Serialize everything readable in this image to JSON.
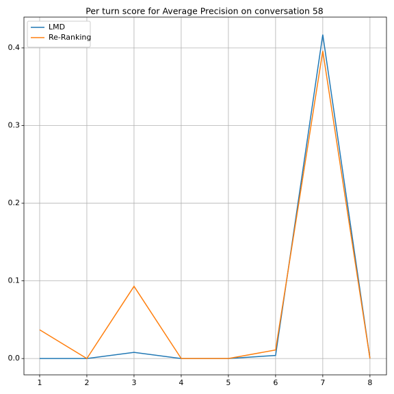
{
  "chart_data": {
    "type": "line",
    "title": "Per turn score for Average Precision on conversation 58",
    "x": [
      1,
      2,
      3,
      4,
      5,
      6,
      7,
      8
    ],
    "series": [
      {
        "name": "LMD",
        "color": "#1f77b4",
        "values": [
          0,
          0,
          0.008,
          0,
          0,
          0.004,
          0.417,
          0
        ]
      },
      {
        "name": "Re-Ranking",
        "color": "#ff7f0e",
        "values": [
          0.037,
          0,
          0.093,
          0,
          0,
          0.011,
          0.396,
          0
        ]
      }
    ],
    "xlim": [
      0.667,
      8.35
    ],
    "ylim": [
      -0.021,
      0.4396
    ],
    "xticks": [
      1,
      2,
      3,
      4,
      5,
      6,
      7,
      8
    ],
    "yticks": [
      {
        "value": 0,
        "label": "0.0"
      },
      0.1,
      0.2,
      0.3,
      0.4
    ],
    "grid": true,
    "legend": "upper-left"
  }
}
